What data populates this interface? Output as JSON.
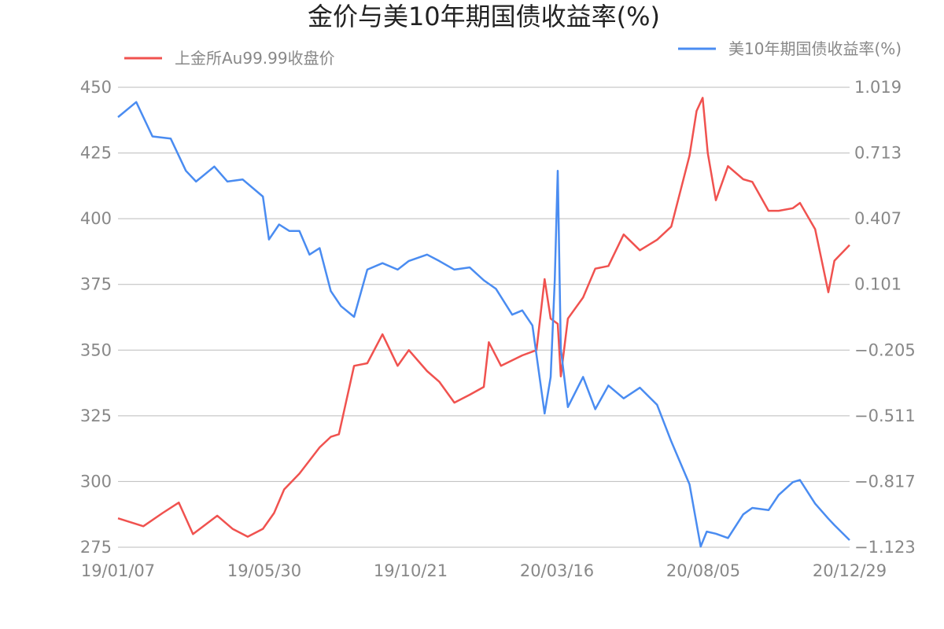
{
  "chart_data": {
    "type": "line",
    "title": "金价与美10年期国债收益率(%)",
    "x_ticks": [
      "19/01/07",
      "19/05/30",
      "19/10/21",
      "20/03/16",
      "20/08/05",
      "20/12/29"
    ],
    "x_range": [
      "2019-01-07",
      "2020-12-29"
    ],
    "y_left": {
      "ticks": [
        "450",
        "425",
        "400",
        "375",
        "350",
        "325",
        "300",
        "275"
      ],
      "range": [
        275,
        450
      ]
    },
    "y_right": {
      "ticks": [
        "1.019",
        "0.713",
        "0.407",
        "0.101",
        "−0.205",
        "−0.511",
        "−0.817",
        "−1.123"
      ],
      "range": [
        -1.123,
        1.019
      ]
    },
    "grid": "horizontal",
    "legend": [
      "top-left",
      "top-right"
    ],
    "series": [
      {
        "name": "上金所Au99.99收盘价",
        "axis": "left",
        "color": "#F0524F",
        "x": [
          "2019-01-07",
          "2019-02-01",
          "2019-02-20",
          "2019-03-08",
          "2019-03-22",
          "2019-04-15",
          "2019-04-30",
          "2019-05-15",
          "2019-05-30",
          "2019-06-10",
          "2019-06-20",
          "2019-07-05",
          "2019-07-25",
          "2019-08-05",
          "2019-08-13",
          "2019-08-28",
          "2019-09-10",
          "2019-09-25",
          "2019-10-10",
          "2019-10-21",
          "2019-11-08",
          "2019-11-20",
          "2019-12-05",
          "2019-12-20",
          "2020-01-03",
          "2020-01-08",
          "2020-01-20",
          "2020-02-10",
          "2020-02-24",
          "2020-03-03",
          "2020-03-09",
          "2020-03-16",
          "2020-03-19",
          "2020-03-26",
          "2020-04-10",
          "2020-04-22",
          "2020-05-05",
          "2020-05-20",
          "2020-06-05",
          "2020-06-22",
          "2020-07-06",
          "2020-07-24",
          "2020-07-31",
          "2020-08-06",
          "2020-08-11",
          "2020-08-19",
          "2020-08-31",
          "2020-09-15",
          "2020-09-24",
          "2020-10-10",
          "2020-10-20",
          "2020-11-03",
          "2020-11-10",
          "2020-11-25",
          "2020-12-08",
          "2020-12-14",
          "2020-12-29"
        ],
        "values": [
          286,
          283,
          288,
          292,
          280,
          287,
          282,
          279,
          282,
          288,
          297,
          303,
          313,
          317,
          318,
          344,
          345,
          356,
          344,
          350,
          342,
          338,
          330,
          333,
          336,
          353,
          344,
          348,
          350,
          377,
          362,
          360,
          340,
          362,
          370,
          381,
          382,
          394,
          388,
          392,
          397,
          424,
          441,
          446,
          425,
          407,
          420,
          415,
          414,
          403,
          403,
          404,
          406,
          396,
          372,
          384,
          390
        ]
      },
      {
        "name": "美10年期国债收益率(%)",
        "axis": "right",
        "color": "#4A8CF1",
        "x": [
          "2019-01-07",
          "2019-01-25",
          "2019-02-10",
          "2019-02-28",
          "2019-03-15",
          "2019-03-25",
          "2019-04-12",
          "2019-04-25",
          "2019-05-10",
          "2019-05-30",
          "2019-06-05",
          "2019-06-15",
          "2019-06-25",
          "2019-07-05",
          "2019-07-15",
          "2019-07-25",
          "2019-08-05",
          "2019-08-15",
          "2019-08-28",
          "2019-09-10",
          "2019-09-25",
          "2019-10-10",
          "2019-10-21",
          "2019-11-08",
          "2019-11-20",
          "2019-12-05",
          "2019-12-20",
          "2020-01-03",
          "2020-01-15",
          "2020-01-31",
          "2020-02-10",
          "2020-02-20",
          "2020-03-03",
          "2020-03-09",
          "2020-03-13",
          "2020-03-16",
          "2020-03-19",
          "2020-03-26",
          "2020-04-10",
          "2020-04-22",
          "2020-05-05",
          "2020-05-20",
          "2020-06-05",
          "2020-06-22",
          "2020-07-06",
          "2020-07-24",
          "2020-08-04",
          "2020-08-10",
          "2020-08-19",
          "2020-08-31",
          "2020-09-15",
          "2020-09-24",
          "2020-10-10",
          "2020-10-20",
          "2020-11-03",
          "2020-11-10",
          "2020-11-25",
          "2020-12-08",
          "2020-12-14",
          "2020-12-29"
        ],
        "values": [
          0.88,
          0.95,
          0.79,
          0.78,
          0.63,
          0.58,
          0.65,
          0.58,
          0.59,
          0.51,
          0.31,
          0.38,
          0.35,
          0.35,
          0.24,
          0.27,
          0.07,
          0.0,
          -0.05,
          0.17,
          0.2,
          0.17,
          0.21,
          0.24,
          0.21,
          0.17,
          0.18,
          0.12,
          0.08,
          -0.04,
          -0.02,
          -0.09,
          -0.5,
          -0.33,
          0.12,
          0.63,
          -0.2,
          -0.47,
          -0.33,
          -0.48,
          -0.37,
          -0.43,
          -0.38,
          -0.46,
          -0.63,
          -0.83,
          -1.12,
          -1.05,
          -1.06,
          -1.08,
          -0.97,
          -0.94,
          -0.95,
          -0.88,
          -0.82,
          -0.81,
          -0.92,
          -0.99,
          -1.02,
          -1.09
        ]
      }
    ]
  }
}
